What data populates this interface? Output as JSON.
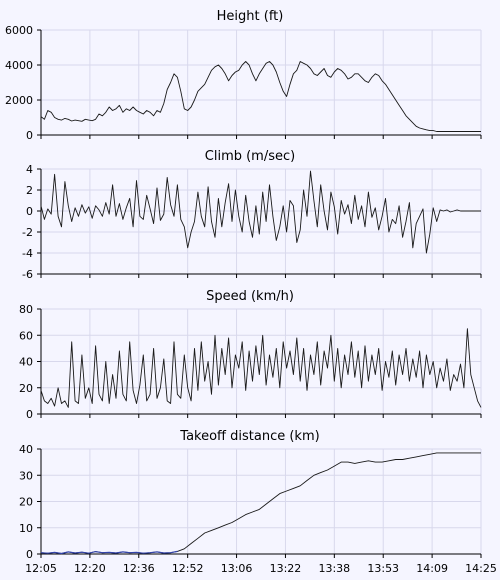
{
  "colors": {
    "background": "#f5f5ff",
    "grid": "#d8d8ec",
    "line": "#1a1a1a",
    "axis": "#000000",
    "low_series": "#3344aa"
  },
  "time_labels": [
    "12:05",
    "12:20",
    "12:36",
    "12:52",
    "13:06",
    "13:22",
    "13:38",
    "13:53",
    "14:09",
    "14:25"
  ],
  "chart_data": [
    {
      "type": "line",
      "title": "Height (ft)",
      "ylim": [
        0,
        6000
      ],
      "yticks": [
        0,
        2000,
        4000,
        6000
      ],
      "grid": true,
      "x": [
        0,
        2,
        4,
        6,
        8,
        10,
        12,
        14,
        16,
        18,
        20,
        22,
        24,
        26,
        28,
        30,
        32,
        34,
        36,
        38,
        40,
        42,
        44,
        46,
        48,
        50,
        52,
        54,
        56,
        58,
        60,
        62,
        64,
        66,
        68,
        70,
        72,
        74,
        76,
        78,
        80,
        82,
        84,
        86,
        88,
        90,
        92,
        94,
        96,
        98,
        100,
        102,
        104,
        106,
        108,
        110,
        112,
        114,
        116,
        118,
        120,
        122,
        124,
        126,
        128,
        130,
        132,
        134,
        136,
        138,
        140,
        142,
        144,
        146,
        148,
        150,
        152,
        154,
        156,
        158,
        160,
        162,
        164,
        166,
        168,
        170,
        172,
        174,
        176,
        178,
        180,
        182,
        184,
        186,
        188,
        190,
        192,
        194,
        196,
        198,
        200,
        202,
        204,
        206,
        208,
        210,
        212,
        214,
        216,
        218,
        220,
        222,
        224,
        226,
        228,
        230,
        232,
        234,
        236,
        238,
        240,
        242,
        244,
        246,
        248,
        250,
        252,
        254,
        256,
        258
      ],
      "values": [
        1050,
        900,
        1400,
        1300,
        1000,
        900,
        850,
        950,
        900,
        800,
        850,
        820,
        780,
        900,
        850,
        820,
        900,
        1200,
        1100,
        1300,
        1600,
        1400,
        1500,
        1700,
        1300,
        1500,
        1400,
        1600,
        1400,
        1300,
        1200,
        1400,
        1300,
        1100,
        1400,
        1300,
        1800,
        2600,
        3000,
        3500,
        3300,
        2500,
        1500,
        1400,
        1600,
        2000,
        2500,
        2700,
        2900,
        3300,
        3700,
        3900,
        4000,
        3800,
        3500,
        3100,
        3400,
        3600,
        3700,
        4000,
        4200,
        4000,
        3500,
        3100,
        3500,
        3800,
        4100,
        4200,
        4000,
        3600,
        3000,
        2500,
        2200,
        2900,
        3500,
        3700,
        4200,
        4100,
        4000,
        3800,
        3500,
        3400,
        3600,
        3800,
        3400,
        3300,
        3600,
        3800,
        3700,
        3500,
        3200,
        3300,
        3500,
        3500,
        3300,
        3100,
        3000,
        3300,
        3500,
        3400,
        3100,
        2900,
        2600,
        2300,
        2000,
        1700,
        1400,
        1100,
        900,
        700,
        500,
        400,
        350,
        300,
        250,
        250,
        200,
        200,
        200,
        200,
        200,
        200,
        200,
        200,
        200,
        200,
        200,
        200,
        200,
        200
      ]
    },
    {
      "type": "line",
      "title": "Climb (m/sec)",
      "ylim": [
        -6,
        4
      ],
      "yticks": [
        -6,
        -4,
        -2,
        0,
        2,
        4
      ],
      "grid": true,
      "x": [
        0,
        2,
        4,
        6,
        8,
        10,
        12,
        14,
        16,
        18,
        20,
        22,
        24,
        26,
        28,
        30,
        32,
        34,
        36,
        38,
        40,
        42,
        44,
        46,
        48,
        50,
        52,
        54,
        56,
        58,
        60,
        62,
        64,
        66,
        68,
        70,
        72,
        74,
        76,
        78,
        80,
        82,
        84,
        86,
        88,
        90,
        92,
        94,
        96,
        98,
        100,
        102,
        104,
        106,
        108,
        110,
        112,
        114,
        116,
        118,
        120,
        122,
        124,
        126,
        128,
        130,
        132,
        134,
        136,
        138,
        140,
        142,
        144,
        146,
        148,
        150,
        152,
        154,
        156,
        158,
        160,
        162,
        164,
        166,
        168,
        170,
        172,
        174,
        176,
        178,
        180,
        182,
        184,
        186,
        188,
        190,
        192,
        194,
        196,
        198,
        200,
        202,
        204,
        206,
        208,
        210,
        212,
        214,
        216,
        218,
        220,
        222,
        224,
        226,
        228,
        230,
        232,
        234,
        236,
        238,
        240,
        242,
        244,
        246,
        248,
        250,
        252,
        254,
        256,
        258
      ],
      "values": [
        0.5,
        -0.8,
        0.2,
        -0.3,
        3.5,
        -0.5,
        -1.5,
        2.8,
        0.5,
        -1.0,
        0.3,
        -0.5,
        0.6,
        -0.2,
        0.4,
        -0.7,
        0.5,
        0.1,
        -0.5,
        0.8,
        -0.3,
        2.5,
        -0.5,
        0.7,
        -0.8,
        0.3,
        1.2,
        -1.5,
        2.9,
        -0.5,
        -0.8,
        1.5,
        0.2,
        -1.2,
        2.2,
        -0.9,
        -0.3,
        3.2,
        0.6,
        -0.5,
        2.5,
        -0.8,
        -1.5,
        -3.5,
        -2.0,
        -1.0,
        1.8,
        -0.5,
        -1.5,
        2.3,
        -1.0,
        -2.5,
        1.2,
        -1.5,
        0.8,
        2.6,
        -1.0,
        2.0,
        -0.5,
        -2.0,
        1.5,
        -1.0,
        -2.5,
        0.5,
        -2.2,
        1.8,
        -1.0,
        2.5,
        -0.5,
        -2.8,
        -1.5,
        0.5,
        -2.0,
        1.0,
        0.5,
        -3.0,
        -1.8,
        2.0,
        -0.5,
        3.8,
        1.0,
        -1.5,
        2.5,
        0.0,
        -1.8,
        1.8,
        0.4,
        -2.2,
        1.0,
        -0.3,
        0.6,
        -1.2,
        1.5,
        -0.8,
        0.5,
        -1.5,
        1.8,
        -0.6,
        0.3,
        -1.8,
        -0.5,
        1.2,
        -2.0,
        -0.8,
        -1.2,
        0.5,
        -2.5,
        -1.0,
        0.8,
        -3.5,
        -1.2,
        -0.5,
        0.2,
        -4.0,
        -2.2,
        0.3,
        -1.0,
        0.1,
        0.0,
        0.1,
        -0.1,
        0.0,
        0.1,
        0.0,
        0.0,
        0.0,
        0.0,
        0.0,
        0.0,
        0.0
      ]
    },
    {
      "type": "line",
      "title": "Speed (km/h)",
      "ylim": [
        0,
        80
      ],
      "yticks": [
        0,
        20,
        40,
        60,
        80
      ],
      "grid": true,
      "x": [
        0,
        2,
        4,
        6,
        8,
        10,
        12,
        14,
        16,
        18,
        20,
        22,
        24,
        26,
        28,
        30,
        32,
        34,
        36,
        38,
        40,
        42,
        44,
        46,
        48,
        50,
        52,
        54,
        56,
        58,
        60,
        62,
        64,
        66,
        68,
        70,
        72,
        74,
        76,
        78,
        80,
        82,
        84,
        86,
        88,
        90,
        92,
        94,
        96,
        98,
        100,
        102,
        104,
        106,
        108,
        110,
        112,
        114,
        116,
        118,
        120,
        122,
        124,
        126,
        128,
        130,
        132,
        134,
        136,
        138,
        140,
        142,
        144,
        146,
        148,
        150,
        152,
        154,
        156,
        158,
        160,
        162,
        164,
        166,
        168,
        170,
        172,
        174,
        176,
        178,
        180,
        182,
        184,
        186,
        188,
        190,
        192,
        194,
        196,
        198,
        200,
        202,
        204,
        206,
        208,
        210,
        212,
        214,
        216,
        218,
        220,
        222,
        224,
        226,
        228,
        230,
        232,
        234,
        236,
        238,
        240,
        242,
        244,
        246,
        248,
        250,
        252,
        254,
        256,
        258
      ],
      "values": [
        18,
        10,
        8,
        12,
        6,
        20,
        8,
        10,
        5,
        55,
        10,
        8,
        45,
        12,
        20,
        8,
        52,
        15,
        10,
        40,
        8,
        30,
        12,
        48,
        15,
        10,
        55,
        18,
        8,
        22,
        45,
        10,
        15,
        50,
        12,
        20,
        42,
        10,
        8,
        55,
        15,
        12,
        45,
        20,
        10,
        50,
        18,
        55,
        25,
        40,
        15,
        60,
        22,
        50,
        30,
        58,
        20,
        45,
        35,
        55,
        18,
        48,
        25,
        52,
        30,
        60,
        22,
        45,
        28,
        50,
        20,
        55,
        35,
        48,
        30,
        58,
        25,
        50,
        18,
        45,
        30,
        55,
        22,
        48,
        35,
        60,
        25,
        50,
        20,
        45,
        30,
        55,
        28,
        48,
        20,
        52,
        25,
        45,
        30,
        50,
        18,
        40,
        28,
        48,
        22,
        45,
        30,
        50,
        25,
        42,
        28,
        48,
        20,
        45,
        30,
        40,
        20,
        35,
        25,
        42,
        18,
        30,
        25,
        38,
        20,
        65,
        30,
        20,
        10,
        5
      ]
    },
    {
      "type": "line",
      "title": "Takeoff distance (km)",
      "ylim": [
        0,
        40
      ],
      "yticks": [
        0,
        10,
        20,
        30,
        40
      ],
      "grid": true,
      "x": [
        0,
        4,
        8,
        12,
        16,
        20,
        24,
        28,
        32,
        36,
        40,
        44,
        48,
        52,
        56,
        60,
        64,
        68,
        72,
        76,
        80,
        84,
        88,
        92,
        96,
        100,
        104,
        108,
        112,
        116,
        120,
        124,
        128,
        132,
        136,
        140,
        144,
        148,
        152,
        156,
        160,
        164,
        168,
        172,
        176,
        180,
        184,
        188,
        192,
        196,
        200,
        204,
        208,
        212,
        216,
        220,
        224,
        228,
        232,
        236,
        240,
        244,
        248,
        252,
        256,
        258
      ],
      "values": [
        0.5,
        0.3,
        0.6,
        0.2,
        0.8,
        0.4,
        0.7,
        0.3,
        0.9,
        0.5,
        0.6,
        0.4,
        0.8,
        0.5,
        0.6,
        0.3,
        0.5,
        0.8,
        0.4,
        0.5,
        1.0,
        2.0,
        4.0,
        6.0,
        8.0,
        9.0,
        10.0,
        11.0,
        12.0,
        13.5,
        15.0,
        16.0,
        17.0,
        19.0,
        21.0,
        23.0,
        24.0,
        25.0,
        26.0,
        28.0,
        30.0,
        31.0,
        32.0,
        33.5,
        35.0,
        35.0,
        34.5,
        35.0,
        35.5,
        35.0,
        35.0,
        35.5,
        36.0,
        36.0,
        36.5,
        37.0,
        37.5,
        38.0,
        38.5,
        38.5,
        38.5,
        38.5,
        38.5,
        38.5,
        38.5,
        38.5
      ]
    }
  ]
}
